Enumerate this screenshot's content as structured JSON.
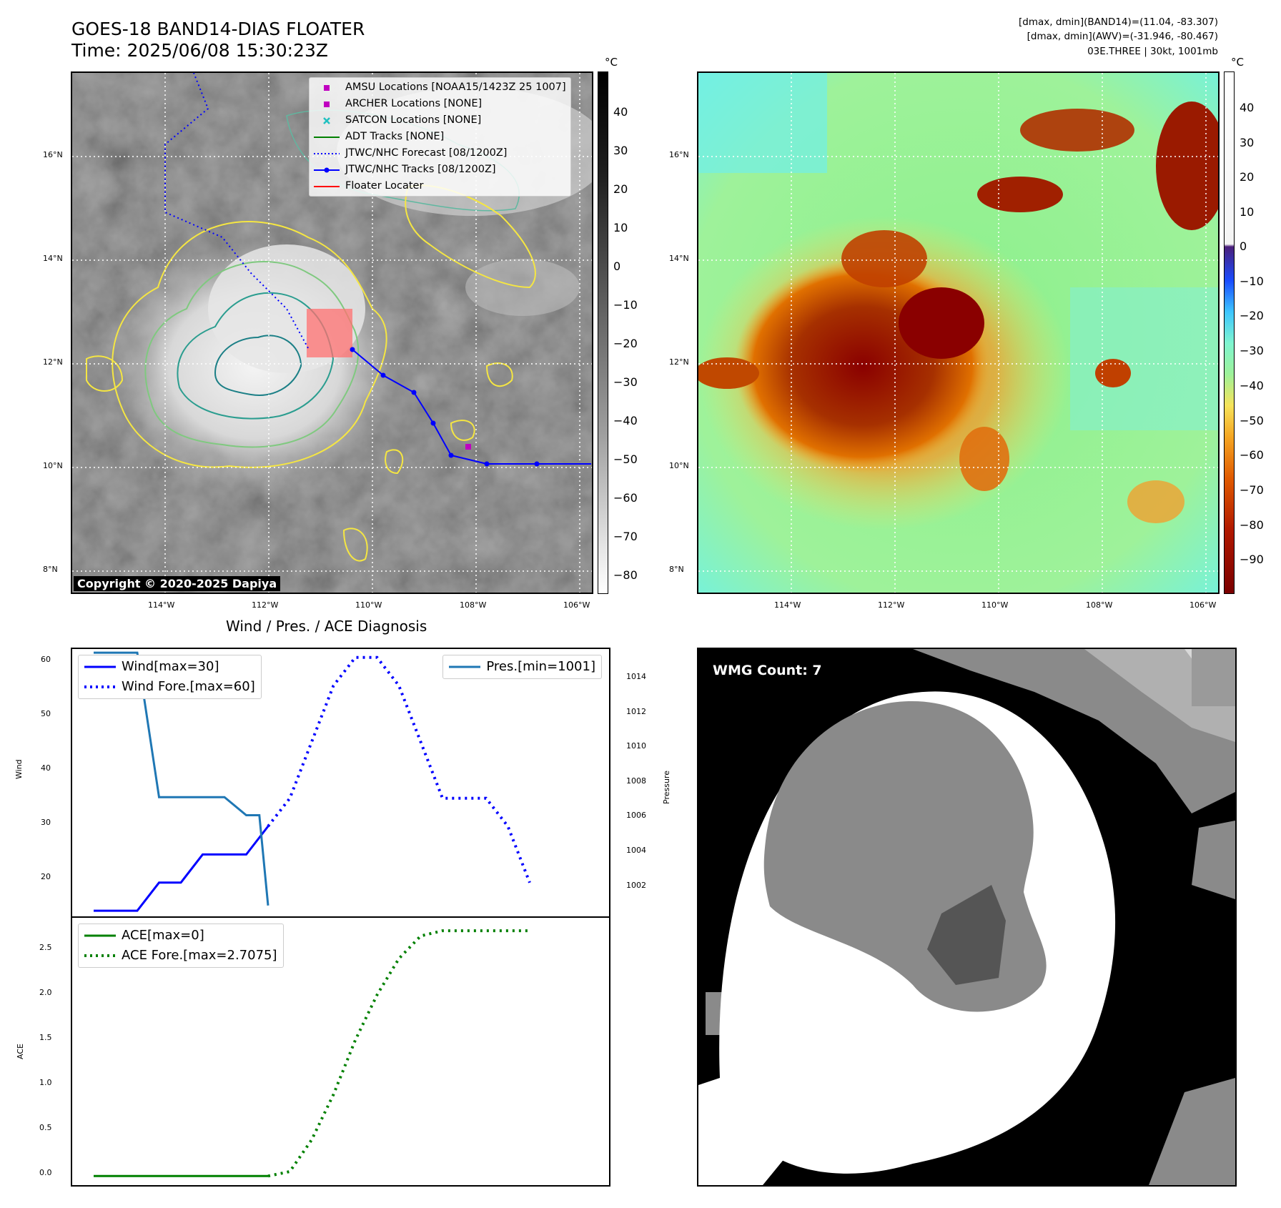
{
  "header": {
    "title_line1": "GOES-18 BAND14-DIAS FLOATER",
    "title_line2": "Time: 2025/06/08 15:30:23Z",
    "info_line1": "[dmax, dmin](BAND14)=(11.04, -83.307)",
    "info_line2": "[dmax, dmin](AWV)=(-31.946, -80.467)",
    "info_line3": "03E.THREE | 30kt, 1001mb"
  },
  "ir_map": {
    "legend": [
      {
        "label": "AMSU Locations [NOAA15/1423Z 25 1007]",
        "marker": "square",
        "color": "#c000c0"
      },
      {
        "label": "ARCHER Locations [NONE]",
        "marker": "square",
        "color": "#c000c0"
      },
      {
        "label": "SATCON Locations [NONE]",
        "marker": "x",
        "color": "#20c0c0"
      },
      {
        "label": "ADT Tracks [NONE]",
        "marker": "line",
        "color": "#008000"
      },
      {
        "label": "JTWC/NHC Forecast [08/1200Z]",
        "marker": "dotted",
        "color": "#0000ff"
      },
      {
        "label": "JTWC/NHC Tracks [08/1200Z]",
        "marker": "line-dot",
        "color": "#0000ff"
      },
      {
        "label": "Floater Locater",
        "marker": "line",
        "color": "#ff0000"
      }
    ],
    "copyright": "Copyright © 2020-2025 Dapiya",
    "lat_labels": [
      "16°N",
      "14°N",
      "12°N",
      "10°N",
      "8°N"
    ],
    "lon_labels": [
      "114°W",
      "112°W",
      "110°W",
      "108°W",
      "106°W"
    ],
    "colorbar_unit": "°C",
    "colorbar_ticks": [
      "40",
      "30",
      "20",
      "10",
      "0",
      "−10",
      "−20",
      "−30",
      "−40",
      "−50",
      "−60",
      "−70",
      "−80"
    ]
  },
  "awv_map": {
    "lat_labels": [
      "16°N",
      "14°N",
      "12°N",
      "10°N",
      "8°N"
    ],
    "lon_labels": [
      "114°W",
      "112°W",
      "110°W",
      "108°W",
      "106°W"
    ],
    "colorbar_unit": "°C",
    "colorbar_ticks": [
      "40",
      "30",
      "20",
      "10",
      "0",
      "−10",
      "−20",
      "−30",
      "−40",
      "−50",
      "−60",
      "−70",
      "−80",
      "−90"
    ]
  },
  "diag": {
    "title": "Wind / Pres. / ACE Diagnosis",
    "wind_axis_label": "Wind",
    "pressure_axis_label": "Pressure",
    "ace_axis_label": "ACE",
    "wind_ticks": [
      "60",
      "50",
      "40",
      "30",
      "20"
    ],
    "pressure_ticks": [
      "1014",
      "1012",
      "1010",
      "1008",
      "1006",
      "1004",
      "1002"
    ],
    "ace_ticks": [
      "2.5",
      "2.0",
      "1.5",
      "1.0",
      "0.5",
      "0.0"
    ],
    "legend_wind": "Wind[max=30]",
    "legend_wind_fore": "Wind Fore.[max=60]",
    "legend_pres": "Pres.[min=1001]",
    "legend_ace": "ACE[max=0]",
    "legend_ace_fore": "ACE Fore.[max=2.7075]"
  },
  "wmg": {
    "label": "WMG Count: 7"
  },
  "chart_data": [
    {
      "type": "line",
      "title": "Wind / Pres. / ACE Diagnosis",
      "ylabel": "Wind",
      "ylim": [
        14,
        61.5
      ],
      "x": [
        0,
        1,
        2,
        3,
        4,
        5,
        6,
        7,
        8,
        9,
        10,
        11,
        12,
        13,
        14,
        15,
        16,
        17,
        18,
        19,
        20
      ],
      "series": [
        {
          "name": "Wind[max=30]",
          "color": "#0000ff",
          "style": "solid",
          "x": [
            0,
            1,
            2,
            3,
            4,
            5,
            6,
            7,
            8
          ],
          "values": [
            15,
            15,
            15,
            20,
            20,
            25,
            25,
            25,
            30
          ]
        },
        {
          "name": "Wind Fore.[max=60]",
          "color": "#0000ff",
          "style": "dotted",
          "x": [
            8,
            9,
            10,
            11,
            12,
            13,
            14,
            15,
            16,
            17,
            18,
            19,
            20
          ],
          "values": [
            30,
            35,
            45,
            55,
            60,
            60,
            55,
            45,
            35,
            35,
            35,
            30,
            20
          ]
        }
      ]
    },
    {
      "type": "line",
      "ylabel": "Pressure",
      "ylim": [
        1000.4,
        1015.2
      ],
      "series": [
        {
          "name": "Pres.[min=1001]",
          "color": "#1f77b4",
          "style": "solid",
          "x": [
            0,
            1,
            2,
            3,
            4,
            5,
            6,
            7,
            7.6,
            8
          ],
          "values": [
            1015,
            1015,
            1015,
            1007,
            1007,
            1007,
            1007,
            1006,
            1006,
            1001
          ]
        }
      ]
    },
    {
      "type": "line",
      "ylabel": "ACE",
      "ylim": [
        -0.1,
        2.85
      ],
      "series": [
        {
          "name": "ACE[max=0]",
          "color": "#008000",
          "style": "solid",
          "x": [
            0,
            8
          ],
          "values": [
            0,
            0
          ]
        },
        {
          "name": "ACE Fore.[max=2.7075]",
          "color": "#008000",
          "style": "dotted",
          "x": [
            8,
            9,
            10,
            11,
            12,
            13,
            14,
            15,
            16,
            17,
            18,
            19,
            20
          ],
          "values": [
            0,
            0.05,
            0.4,
            0.9,
            1.5,
            2.0,
            2.4,
            2.65,
            2.7075,
            2.7075,
            2.7075,
            2.7075,
            2.7075
          ]
        }
      ]
    }
  ]
}
